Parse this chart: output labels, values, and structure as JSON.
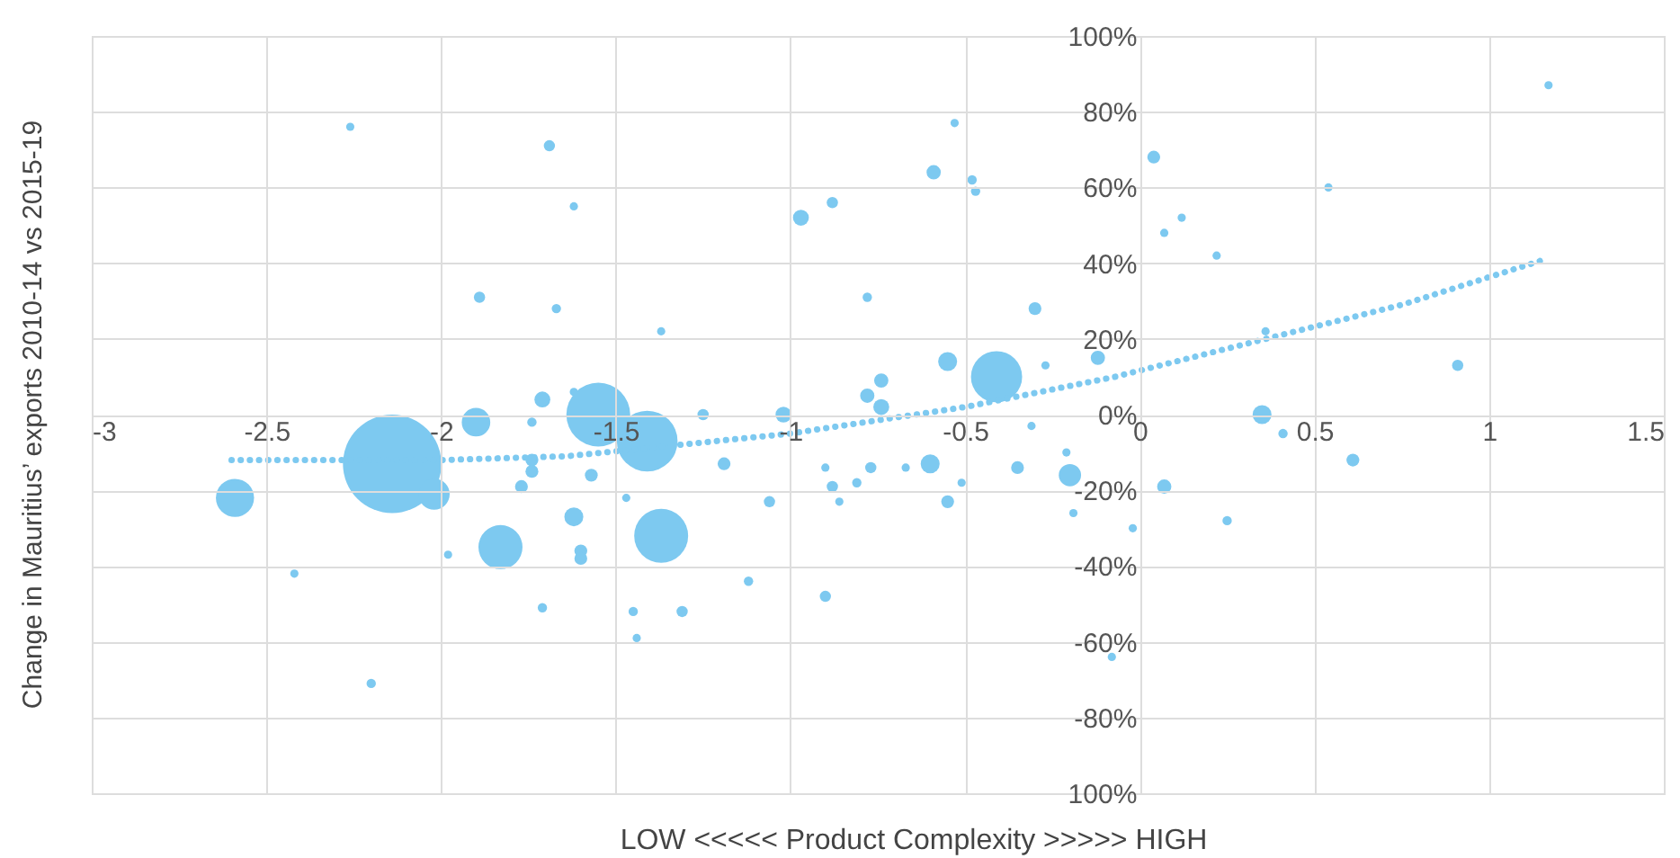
{
  "chart_data": {
    "type": "bubble",
    "xlabel": "LOW <<<<< Product Complexity >>>>> HIGH",
    "ylabel": "Change in Mauritius’ exports 2010-14 vs 2015-19",
    "xlim": [
      -3,
      1.5
    ],
    "xticks": [
      -3,
      -2.5,
      -2,
      -1.5,
      -1,
      -0.5,
      0,
      0.5,
      1,
      1.5
    ],
    "ylim": [
      -100,
      100
    ],
    "yticks": [
      {
        "value": 100,
        "label": "100%"
      },
      {
        "value": 80,
        "label": "80%"
      },
      {
        "value": 60,
        "label": "60%"
      },
      {
        "value": 40,
        "label": "40%"
      },
      {
        "value": 20,
        "label": "20%"
      },
      {
        "value": 0,
        "label": "0%"
      },
      {
        "value": -20,
        "label": "-20%"
      },
      {
        "value": -40,
        "label": "-40%"
      },
      {
        "value": -60,
        "label": "-60%"
      },
      {
        "value": -80,
        "label": "-80%"
      },
      {
        "value": -100,
        "label": "100%"
      }
    ],
    "grid": true,
    "series": [
      {
        "color": "#7dc9f0",
        "marker": "circle",
        "x": [
          -2.26,
          -1.69,
          -1.62,
          -1.89,
          -1.67,
          -1.62,
          -1.71,
          -1.74,
          -1.9,
          -1.55,
          -1.41,
          -2.14,
          -2.59,
          -2.02,
          -1.83,
          -2.42,
          -1.98,
          -2.2,
          -1.71,
          -1.62,
          -1.6,
          -1.6,
          -1.77,
          -1.74,
          -1.74,
          -1.57,
          -1.47,
          -1.45,
          -1.44,
          -1.37,
          -1.31,
          -1.25,
          -1.19,
          -1.06,
          -1.12,
          -1.02,
          -1.37,
          -0.97,
          -0.88,
          -0.78,
          -0.59,
          -0.53,
          -0.48,
          -0.47,
          -0.55,
          -0.41,
          -0.3,
          -0.27,
          -0.12,
          -0.31,
          -0.78,
          -0.74,
          -0.74,
          -0.9,
          -0.88,
          -0.86,
          -0.81,
          -0.77,
          -0.9,
          -0.67,
          -0.6,
          -0.55,
          -0.51,
          -0.35,
          -0.21,
          -0.2,
          -0.19,
          -0.02,
          -0.08,
          0.07,
          0.04,
          0.07,
          0.12,
          0.22,
          0.54,
          1.17,
          0.91,
          0.36,
          0.35,
          0.41,
          0.61,
          0.25
        ],
        "values": [
          76,
          71,
          55,
          31,
          28,
          6,
          4,
          -2,
          -2,
          0,
          -7,
          -13,
          -22,
          -21,
          -35,
          -42,
          -37,
          -71,
          -51,
          -27,
          -36,
          -38,
          -19,
          -12,
          -15,
          -16,
          -22,
          -52,
          -59,
          -32,
          -52,
          0,
          -13,
          -23,
          -44,
          0,
          22,
          52,
          56,
          31,
          64,
          77,
          62,
          59,
          14,
          10,
          28,
          13,
          15,
          -3,
          5,
          9,
          2,
          -14,
          -19,
          -23,
          -18,
          -14,
          -48,
          -14,
          -13,
          -23,
          -18,
          -14,
          -10,
          -16,
          -26,
          -30,
          -64,
          -19,
          68,
          48,
          52,
          42,
          60,
          87,
          13,
          22,
          0,
          -5,
          -12,
          -28
        ],
        "sizes": [
          0.007,
          0.013,
          0.007,
          0.013,
          0.009,
          0.007,
          0.026,
          0.009,
          0.084,
          0.42,
          0.38,
          1,
          0.15,
          0.1,
          0.2,
          0.007,
          0.007,
          0.009,
          0.009,
          0.037,
          0.017,
          0.017,
          0.017,
          0.017,
          0.017,
          0.017,
          0.007,
          0.009,
          0.007,
          0.3,
          0.013,
          0.013,
          0.017,
          0.013,
          0.009,
          0.026,
          0.007,
          0.026,
          0.013,
          0.009,
          0.021,
          0.007,
          0.009,
          0.009,
          0.037,
          0.27,
          0.017,
          0.007,
          0.021,
          0.007,
          0.021,
          0.021,
          0.026,
          0.007,
          0.013,
          0.007,
          0.009,
          0.013,
          0.013,
          0.007,
          0.037,
          0.017,
          0.007,
          0.017,
          0.007,
          0.051,
          0.007,
          0.007,
          0.007,
          0.021,
          0.017,
          0.007,
          0.007,
          0.007,
          0.007,
          0.007,
          0.013,
          0.007,
          0.037,
          0.009,
          0.017,
          0.009
        ]
      },
      {
        "type": "line",
        "color": "#7dc9f0",
        "line_style": "dotted",
        "x": [
          -2.6,
          -2,
          -1.64,
          -1,
          -0.5,
          -0.07,
          0.36,
          0.75,
          1.16
        ],
        "values": [
          -12,
          -12,
          -11,
          -5,
          2,
          10,
          20,
          29,
          41
        ]
      }
    ]
  }
}
